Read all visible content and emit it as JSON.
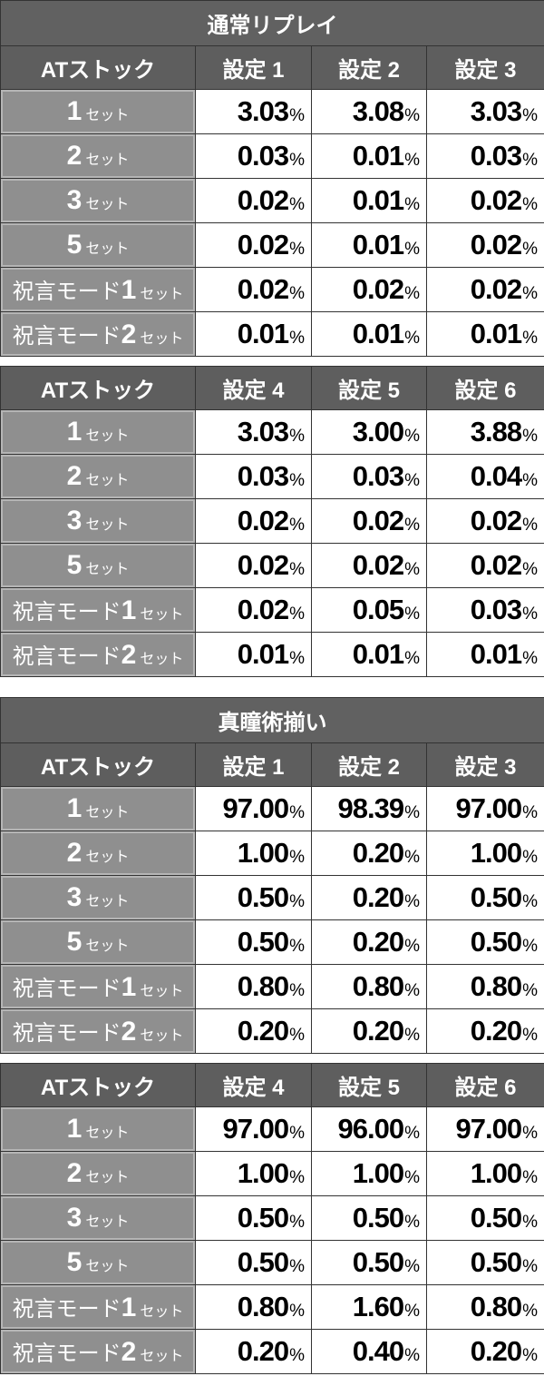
{
  "sections": [
    {
      "title": "通常リプレイ",
      "tables": [
        {
          "header": [
            "ATストック",
            "設定 1",
            "設定 2",
            "設定 3"
          ],
          "rows": [
            {
              "pre": "",
              "num": "1",
              "unit": "セット",
              "values": [
                "3.03",
                "3.08",
                "3.03"
              ]
            },
            {
              "pre": "",
              "num": "2",
              "unit": "セット",
              "values": [
                "0.03",
                "0.01",
                "0.03"
              ]
            },
            {
              "pre": "",
              "num": "3",
              "unit": "セット",
              "values": [
                "0.02",
                "0.01",
                "0.02"
              ]
            },
            {
              "pre": "",
              "num": "5",
              "unit": "セット",
              "values": [
                "0.02",
                "0.01",
                "0.02"
              ]
            },
            {
              "pre": "祝言モード",
              "num": "1",
              "unit": "セット",
              "values": [
                "0.02",
                "0.02",
                "0.02"
              ]
            },
            {
              "pre": "祝言モード",
              "num": "2",
              "unit": "セット",
              "values": [
                "0.01",
                "0.01",
                "0.01"
              ]
            }
          ]
        },
        {
          "header": [
            "ATストック",
            "設定 4",
            "設定 5",
            "設定 6"
          ],
          "rows": [
            {
              "pre": "",
              "num": "1",
              "unit": "セット",
              "values": [
                "3.03",
                "3.00",
                "3.88"
              ]
            },
            {
              "pre": "",
              "num": "2",
              "unit": "セット",
              "values": [
                "0.03",
                "0.03",
                "0.04"
              ]
            },
            {
              "pre": "",
              "num": "3",
              "unit": "セット",
              "values": [
                "0.02",
                "0.02",
                "0.02"
              ]
            },
            {
              "pre": "",
              "num": "5",
              "unit": "セット",
              "values": [
                "0.02",
                "0.02",
                "0.02"
              ]
            },
            {
              "pre": "祝言モード",
              "num": "1",
              "unit": "セット",
              "values": [
                "0.02",
                "0.05",
                "0.03"
              ]
            },
            {
              "pre": "祝言モード",
              "num": "2",
              "unit": "セット",
              "values": [
                "0.01",
                "0.01",
                "0.01"
              ]
            }
          ]
        }
      ]
    },
    {
      "title": "真瞳術揃い",
      "tables": [
        {
          "header": [
            "ATストック",
            "設定 1",
            "設定 2",
            "設定 3"
          ],
          "rows": [
            {
              "pre": "",
              "num": "1",
              "unit": "セット",
              "values": [
                "97.00",
                "98.39",
                "97.00"
              ]
            },
            {
              "pre": "",
              "num": "2",
              "unit": "セット",
              "values": [
                "1.00",
                "0.20",
                "1.00"
              ]
            },
            {
              "pre": "",
              "num": "3",
              "unit": "セット",
              "values": [
                "0.50",
                "0.20",
                "0.50"
              ]
            },
            {
              "pre": "",
              "num": "5",
              "unit": "セット",
              "values": [
                "0.50",
                "0.20",
                "0.50"
              ]
            },
            {
              "pre": "祝言モード",
              "num": "1",
              "unit": "セット",
              "values": [
                "0.80",
                "0.80",
                "0.80"
              ]
            },
            {
              "pre": "祝言モード",
              "num": "2",
              "unit": "セット",
              "values": [
                "0.20",
                "0.20",
                "0.20"
              ]
            }
          ]
        },
        {
          "header": [
            "ATストック",
            "設定 4",
            "設定 5",
            "設定 6"
          ],
          "rows": [
            {
              "pre": "",
              "num": "1",
              "unit": "セット",
              "values": [
                "97.00",
                "96.00",
                "97.00"
              ]
            },
            {
              "pre": "",
              "num": "2",
              "unit": "セット",
              "values": [
                "1.00",
                "1.00",
                "1.00"
              ]
            },
            {
              "pre": "",
              "num": "3",
              "unit": "セット",
              "values": [
                "0.50",
                "0.50",
                "0.50"
              ]
            },
            {
              "pre": "",
              "num": "5",
              "unit": "セット",
              "values": [
                "0.50",
                "0.50",
                "0.50"
              ]
            },
            {
              "pre": "祝言モード",
              "num": "1",
              "unit": "セット",
              "values": [
                "0.80",
                "1.60",
                "0.80"
              ]
            },
            {
              "pre": "祝言モード",
              "num": "2",
              "unit": "セット",
              "values": [
                "0.20",
                "0.40",
                "0.20"
              ]
            }
          ]
        }
      ]
    }
  ],
  "percent_sign": "%",
  "colors": {
    "header": "#5e5e5e",
    "label": "#8f8f8f",
    "cell": "#ffffff"
  }
}
